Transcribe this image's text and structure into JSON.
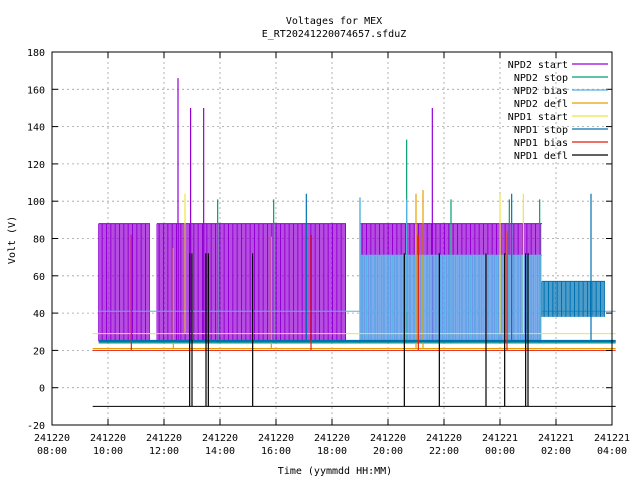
{
  "chart_data": {
    "type": "line",
    "title": "Voltages for MEX",
    "subtitle": "E_RT20241220074657.sfduZ",
    "xlabel": "Time (yymmdd HH:MM)",
    "ylabel": "Volt (V)",
    "ylim": [
      -20,
      180
    ],
    "yticks": [
      -20,
      0,
      20,
      40,
      60,
      80,
      100,
      120,
      140,
      160,
      180
    ],
    "xlim": [
      "2024-12-20 08:00",
      "2024-12-21 04:00"
    ],
    "xticks": [
      {
        "date": "241220",
        "time": "08:00"
      },
      {
        "date": "241220",
        "time": "10:00"
      },
      {
        "date": "241220",
        "time": "12:00"
      },
      {
        "date": "241220",
        "time": "14:00"
      },
      {
        "date": "241220",
        "time": "16:00"
      },
      {
        "date": "241220",
        "time": "18:00"
      },
      {
        "date": "241220",
        "time": "20:00"
      },
      {
        "date": "241220",
        "time": "22:00"
      },
      {
        "date": "241221",
        "time": "00:00"
      },
      {
        "date": "241221",
        "time": "02:00"
      },
      {
        "date": "241221",
        "time": "04:00"
      }
    ],
    "grid": true,
    "legend_position": "top-right",
    "series": [
      {
        "name": "NPD2 start",
        "color": "#9400d3",
        "baseline": 25,
        "segments": [
          {
            "start": "2024-12-20 09:40",
            "end": "2024-12-20 11:30",
            "low": 25,
            "high": 88
          },
          {
            "start": "2024-12-20 11:45",
            "end": "2024-12-20 18:30",
            "low": 25,
            "high": 88
          },
          {
            "start": "2024-12-20 19:00",
            "end": "2024-12-21 01:30",
            "low": 25,
            "high": 88
          }
        ],
        "spikes": [
          {
            "time": "2024-12-20 12:30",
            "value": 166
          },
          {
            "time": "2024-12-20 12:57",
            "value": 150
          },
          {
            "time": "2024-12-20 13:25",
            "value": 150
          },
          {
            "time": "2024-12-20 21:35",
            "value": 150
          }
        ]
      },
      {
        "name": "NPD2 stop",
        "color": "#009e73",
        "baseline": 24,
        "spikes": [
          {
            "time": "2024-12-20 13:55",
            "value": 101
          },
          {
            "time": "2024-12-20 15:55",
            "value": 101
          },
          {
            "time": "2024-12-20 19:00",
            "value": 102
          },
          {
            "time": "2024-12-20 20:40",
            "value": 133
          },
          {
            "time": "2024-12-20 22:15",
            "value": 101
          },
          {
            "time": "2024-12-21 00:20",
            "value": 101
          },
          {
            "time": "2024-12-21 01:25",
            "value": 101
          }
        ]
      },
      {
        "name": "NPD2 bias",
        "color": "#56b4e9",
        "baseline": 41,
        "segments": [
          {
            "start": "2024-12-20 19:00",
            "end": "2024-12-21 01:30",
            "low": 25,
            "high": 71
          }
        ],
        "spikes": [
          {
            "time": "2024-12-20 19:00",
            "value": 102
          },
          {
            "time": "2024-12-20 20:40",
            "value": 101
          }
        ]
      },
      {
        "name": "NPD2 defl",
        "color": "#e69f00",
        "baseline": 21,
        "spikes": [
          {
            "time": "2024-12-20 12:20",
            "value": 75
          },
          {
            "time": "2024-12-20 15:50",
            "value": 81
          },
          {
            "time": "2024-12-20 21:00",
            "value": 104
          },
          {
            "time": "2024-12-20 21:15",
            "value": 106
          }
        ]
      },
      {
        "name": "NPD1 start",
        "color": "#f0e442",
        "baseline": 29,
        "spikes": [
          {
            "time": "2024-12-20 12:45",
            "value": 104
          },
          {
            "time": "2024-12-21 00:00",
            "value": 104
          },
          {
            "time": "2024-12-21 00:50",
            "value": 104
          }
        ]
      },
      {
        "name": "NPD1 stop",
        "color": "#0072b2",
        "baseline": 25,
        "segments": [
          {
            "start": "2024-12-21 01:30",
            "end": "2024-12-21 03:45",
            "low": 38,
            "high": 57
          }
        ],
        "spikes": [
          {
            "time": "2024-12-20 17:05",
            "value": 104
          },
          {
            "time": "2024-12-21 00:25",
            "value": 104
          },
          {
            "time": "2024-12-21 03:15",
            "value": 104
          }
        ]
      },
      {
        "name": "NPD1 bias",
        "color": "#e51e10",
        "baseline": 20,
        "spikes": [
          {
            "time": "2024-12-20 10:50",
            "value": 82
          },
          {
            "time": "2024-12-20 17:15",
            "value": 82
          },
          {
            "time": "2024-12-20 21:05",
            "value": 82
          },
          {
            "time": "2024-12-21 00:15",
            "value": 84
          }
        ]
      },
      {
        "name": "NPD1 defl",
        "color": "#000000",
        "baseline": -10,
        "spikes": [
          {
            "time": "2024-12-20 12:55",
            "value": 72
          },
          {
            "time": "2024-12-20 13:00",
            "value": 72
          },
          {
            "time": "2024-12-20 13:30",
            "value": 72
          },
          {
            "time": "2024-12-20 13:35",
            "value": 72
          },
          {
            "time": "2024-12-20 15:10",
            "value": 72
          },
          {
            "time": "2024-12-20 20:35",
            "value": 72
          },
          {
            "time": "2024-12-20 21:50",
            "value": 72
          },
          {
            "time": "2024-12-20 23:30",
            "value": 72
          },
          {
            "time": "2024-12-21 00:10",
            "value": 72
          },
          {
            "time": "2024-12-21 00:55",
            "value": 72
          },
          {
            "time": "2024-12-21 01:00",
            "value": 72
          }
        ]
      }
    ]
  }
}
